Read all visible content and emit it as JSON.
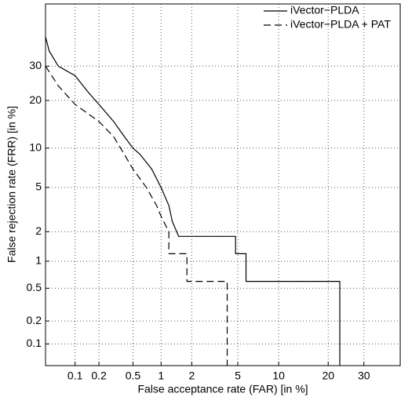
{
  "chart_data": {
    "type": "line",
    "xlabel": "False acceptance rate (FAR) [in %]",
    "ylabel": "False rejection rate (FRR) [in %]",
    "scale": "probit",
    "xlim": [
      0.04,
      42
    ],
    "ylim": [
      0.05,
      52
    ],
    "xticks": [
      0.1,
      0.2,
      0.5,
      1,
      2,
      5,
      10,
      20,
      30
    ],
    "yticks": [
      0.1,
      0.2,
      0.5,
      1,
      2,
      5,
      10,
      20,
      30
    ],
    "grid": true,
    "legend": "top-right",
    "series": [
      {
        "name": "iVector−PLDA",
        "color": "#000000",
        "dash": "solid",
        "x": [
          0.04,
          0.045,
          0.06,
          0.1,
          0.15,
          0.2,
          0.3,
          0.4,
          0.5,
          0.6,
          0.8,
          1.0,
          1.2,
          1.3,
          1.5,
          4.8,
          4.8,
          5.8,
          5.8,
          23,
          23
        ],
        "values": [
          40,
          35,
          30,
          27,
          22,
          19,
          15,
          12,
          10,
          9,
          7,
          5,
          3.5,
          2.5,
          1.8,
          1.8,
          1.2,
          1.2,
          0.6,
          0.6,
          0.05
        ]
      },
      {
        "name": "iVector−PLDA + PAT",
        "color": "#000000",
        "dash": "dashed",
        "x": [
          0.04,
          0.06,
          0.1,
          0.2,
          0.3,
          0.4,
          0.5,
          0.7,
          0.9,
          1.0,
          1.2,
          1.2,
          1.8,
          1.8,
          4.1,
          4.1
        ],
        "values": [
          30,
          24,
          19,
          15,
          12,
          9,
          7,
          5,
          3.5,
          2.8,
          2,
          1.2,
          1.2,
          0.6,
          0.6,
          0.05
        ]
      }
    ]
  }
}
